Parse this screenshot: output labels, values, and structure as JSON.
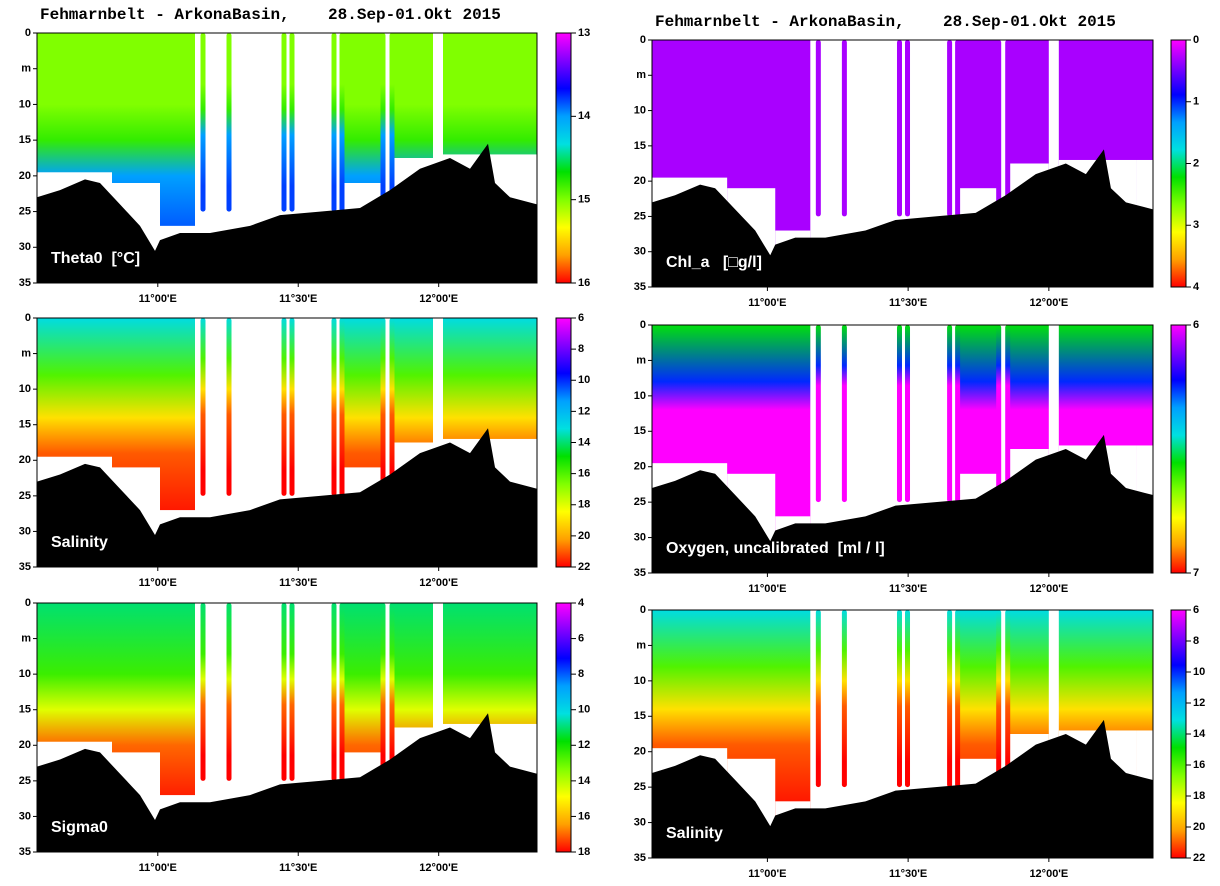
{
  "chart_data": [
    {
      "type": "section",
      "title": "Fehmarnbelt - ArkonaBasin,    28.Sep-01.Okt 2015",
      "label": "Theta0  [°C]",
      "xlim": [
        10.57,
        12.35
      ],
      "xticks": [
        {
          "value": 11.0,
          "label": "11°00'E"
        },
        {
          "value": 11.5,
          "label": "11°30'E"
        },
        {
          "value": 12.0,
          "label": "12°00'E"
        }
      ],
      "ylim": [
        0,
        35
      ],
      "yticks": [
        0,
        {
          "value": 5,
          "label": "m"
        },
        10,
        15,
        20,
        25,
        30,
        35
      ],
      "clim": [
        13,
        16
      ],
      "cticks": [
        13,
        14,
        15,
        16
      ],
      "colormap": [
        "#ff00ff",
        "#8000ff",
        "#0000ff",
        "#00a0ff",
        "#00e0e0",
        "#00e000",
        "#80ff00",
        "#ffff00",
        "#ffa000",
        "#ff0000"
      ],
      "profile": {
        "depths": [
          0,
          10,
          15,
          20,
          30
        ],
        "values": [
          15.0,
          15.0,
          14.8,
          14.0,
          13.8
        ]
      }
    },
    {
      "type": "section",
      "label": "Salinity",
      "xlim": [
        10.57,
        12.35
      ],
      "xticks": [
        {
          "value": 11.0,
          "label": "11°00'E"
        },
        {
          "value": 11.5,
          "label": "11°30'E"
        },
        {
          "value": 12.0,
          "label": "12°00'E"
        }
      ],
      "ylim": [
        0,
        35
      ],
      "yticks": [
        0,
        {
          "value": 5,
          "label": "m"
        },
        10,
        15,
        20,
        25,
        30,
        35
      ],
      "clim": [
        6,
        22
      ],
      "cticks": [
        6,
        8,
        10,
        12,
        14,
        16,
        18,
        20,
        22
      ],
      "colormap": [
        "#ff00ff",
        "#8000ff",
        "#0000ff",
        "#00a0ff",
        "#00e0e0",
        "#00e000",
        "#80ff00",
        "#ffff00",
        "#ffa000",
        "#ff0000"
      ],
      "profile": {
        "depths": [
          0,
          8,
          14,
          19,
          30
        ],
        "values": [
          13,
          16,
          19,
          21,
          22
        ]
      }
    },
    {
      "type": "section",
      "label": "Sigma0",
      "xlim": [
        10.57,
        12.35
      ],
      "xticks": [
        {
          "value": 11.0,
          "label": "11°00'E"
        },
        {
          "value": 11.5,
          "label": "11°30'E"
        },
        {
          "value": 12.0,
          "label": "12°00'E"
        }
      ],
      "ylim": [
        0,
        35
      ],
      "yticks": [
        0,
        {
          "value": 5,
          "label": "m"
        },
        10,
        15,
        20,
        25,
        30,
        35
      ],
      "clim": [
        4,
        18
      ],
      "cticks": [
        4,
        6,
        8,
        10,
        12,
        14,
        16,
        18
      ],
      "colormap": [
        "#ff00ff",
        "#8000ff",
        "#0000ff",
        "#00a0ff",
        "#00e0e0",
        "#00e000",
        "#80ff00",
        "#ffff00",
        "#ffa000",
        "#ff0000"
      ],
      "profile": {
        "depths": [
          0,
          10,
          15,
          20,
          30
        ],
        "values": [
          11,
          12.5,
          14.5,
          17,
          18
        ]
      }
    },
    {
      "type": "section",
      "title": "Fehmarnbelt - ArkonaBasin,    28.Sep-01.Okt 2015",
      "label": "Chl_a   [□g/l]",
      "xlim": [
        10.59,
        12.37
      ],
      "xticks": [
        {
          "value": 11.0,
          "label": "11°00'E"
        },
        {
          "value": 11.5,
          "label": "11°30'E"
        },
        {
          "value": 12.0,
          "label": "12°00'E"
        }
      ],
      "ylim": [
        0,
        35
      ],
      "yticks": [
        0,
        {
          "value": 5,
          "label": "m"
        },
        10,
        15,
        20,
        25,
        30,
        35
      ],
      "clim": [
        0,
        4
      ],
      "cticks": [
        0,
        1,
        2,
        3,
        4
      ],
      "colormap": [
        "#ff00ff",
        "#8000ff",
        "#0000ff",
        "#00a0ff",
        "#00e0e0",
        "#00e000",
        "#80ff00",
        "#ffff00",
        "#ffa000",
        "#ff0000"
      ],
      "profile": {
        "depths": [
          0,
          30
        ],
        "values": [
          0.3,
          0.3
        ]
      }
    },
    {
      "type": "section",
      "label": "Oxygen, uncalibrated  [ml / l]",
      "xlim": [
        10.59,
        12.37
      ],
      "xticks": [
        {
          "value": 11.0,
          "label": "11°00'E"
        },
        {
          "value": 11.5,
          "label": "11°30'E"
        },
        {
          "value": 12.0,
          "label": "12°00'E"
        }
      ],
      "ylim": [
        0,
        35
      ],
      "yticks": [
        0,
        {
          "value": 5,
          "label": "m"
        },
        10,
        15,
        20,
        25,
        30,
        35
      ],
      "clim": [
        6,
        7
      ],
      "cticks": [
        6,
        7
      ],
      "colormap": [
        "#ff00ff",
        "#8000ff",
        "#0000ff",
        "#00a0ff",
        "#00e0e0",
        "#00e000",
        "#80ff00",
        "#ffff00",
        "#ffa000",
        "#ff0000"
      ],
      "profile": {
        "depths": [
          0,
          8,
          12,
          20,
          30
        ],
        "values": [
          6.55,
          6.25,
          6.0,
          6.0,
          6.0
        ]
      }
    },
    {
      "type": "section",
      "label": "Salinity",
      "xlim": [
        10.59,
        12.37
      ],
      "xticks": [
        {
          "value": 11.0,
          "label": "11°00'E"
        },
        {
          "value": 11.5,
          "label": "11°30'E"
        },
        {
          "value": 12.0,
          "label": "12°00'E"
        }
      ],
      "ylim": [
        0,
        35
      ],
      "yticks": [
        0,
        {
          "value": 5,
          "label": "m"
        },
        10,
        15,
        20,
        25,
        30,
        35
      ],
      "clim": [
        6,
        22
      ],
      "cticks": [
        6,
        8,
        10,
        12,
        14,
        16,
        18,
        20,
        22
      ],
      "colormap": [
        "#ff00ff",
        "#8000ff",
        "#0000ff",
        "#00a0ff",
        "#00e0e0",
        "#00e000",
        "#80ff00",
        "#ffff00",
        "#ffa000",
        "#ff0000"
      ],
      "profile": {
        "depths": [
          0,
          8,
          14,
          19,
          30
        ],
        "values": [
          13,
          16,
          19,
          21,
          22
        ]
      }
    }
  ]
}
